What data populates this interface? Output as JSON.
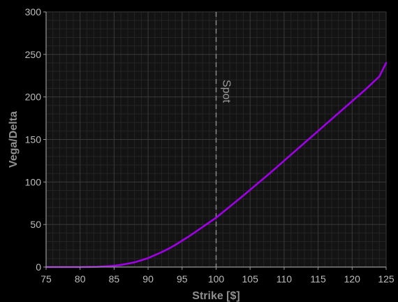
{
  "chart_data": {
    "type": "line",
    "title": "",
    "xlabel": "Strike [$]",
    "ylabel": "Vega/Delta",
    "xlim": [
      75,
      125
    ],
    "ylim": [
      0,
      300
    ],
    "x_ticks": [
      75,
      80,
      85,
      90,
      95,
      100,
      105,
      110,
      115,
      120,
      125
    ],
    "y_ticks": [
      0,
      50,
      100,
      150,
      200,
      250,
      300
    ],
    "grid": true,
    "legend": "none",
    "colors": {
      "background": "#000000",
      "plot_background": "#131313",
      "grid_major": "#3a3a3a",
      "grid_minor": "#242424",
      "axis": "#9a9a9a",
      "line": "#a000e6",
      "spot_line": "#8a8a8a"
    },
    "vline": {
      "x": 100,
      "label": "Spot",
      "style": "dashed"
    },
    "series": [
      {
        "x": [
          75,
          80,
          82.5,
          85,
          86,
          87,
          88,
          89,
          90,
          91,
          92,
          93,
          94,
          95,
          96,
          97,
          98,
          99,
          100,
          102,
          104,
          106,
          108,
          110,
          112,
          114,
          116,
          118,
          120,
          122,
          124,
          125
        ],
        "y": [
          0,
          0,
          0.3,
          1.5,
          2.5,
          4,
          5.5,
          8,
          10.5,
          14,
          17.5,
          21.5,
          26,
          31,
          36,
          41.5,
          47,
          52.5,
          58,
          71,
          84,
          97.5,
          111,
          125,
          139,
          153,
          167,
          181,
          195,
          209,
          224,
          240
        ]
      }
    ]
  }
}
